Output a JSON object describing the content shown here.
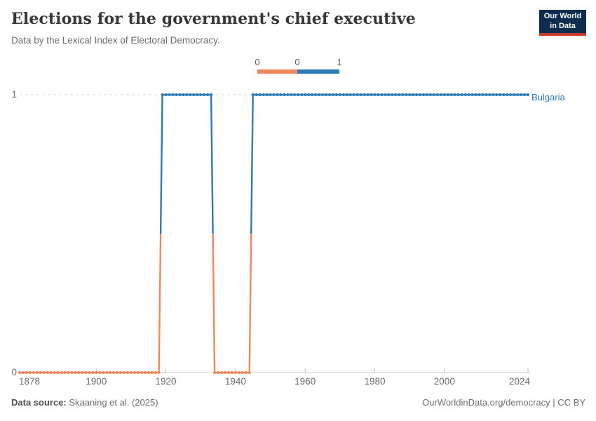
{
  "header": {
    "title": "Elections for the government's chief executive",
    "subtitle": "Data by the Lexical Index of Electoral Democracy.",
    "logo": {
      "line1": "Our World",
      "line2": "in Data",
      "bg_color": "#0d2d4f",
      "accent_color": "#cb372c"
    }
  },
  "chart_data": {
    "type": "line",
    "subtype": "binary-step-line-with-yearly-dots",
    "title": "Elections for the government's chief executive",
    "subtitle": "Data by the Lexical Index of Electoral Democracy.",
    "xlim": [
      1878,
      2024
    ],
    "ylim": [
      0,
      1
    ],
    "xticks": [
      1878,
      1900,
      1920,
      1940,
      1960,
      1980,
      2000,
      2024
    ],
    "yticks": [
      0,
      1
    ],
    "grid": {
      "dashed_line_at_y1": true,
      "solid_axis_at_y0": true
    },
    "value_colors": {
      "0": "#f0875c",
      "1": "#2e79b5"
    },
    "series": [
      {
        "name": "Bulgaria",
        "label_color": "#2e79b5",
        "segments": [
          {
            "start_year": 1878,
            "end_year": 1918,
            "value": 0
          },
          {
            "start_year": 1919,
            "end_year": 1933,
            "value": 1
          },
          {
            "start_year": 1934,
            "end_year": 1944,
            "value": 0
          },
          {
            "start_year": 1945,
            "end_year": 2024,
            "value": 1
          }
        ]
      }
    ],
    "legend": {
      "position": "top-center",
      "edge_labels": [
        "0",
        "0",
        "1"
      ],
      "bin_colors": [
        "#f0875c",
        "#2e79b5"
      ]
    }
  },
  "footer": {
    "data_source_label": "Data source:",
    "data_source_value": " Skaaning et al. (2025)",
    "credit": "OurWorldinData.org/democracy | CC BY"
  },
  "colors": {
    "grid": "#d8d8d8",
    "axis": "#cccccc",
    "tick": "#b8b8b8",
    "tick_text": "#6b6b6b"
  }
}
